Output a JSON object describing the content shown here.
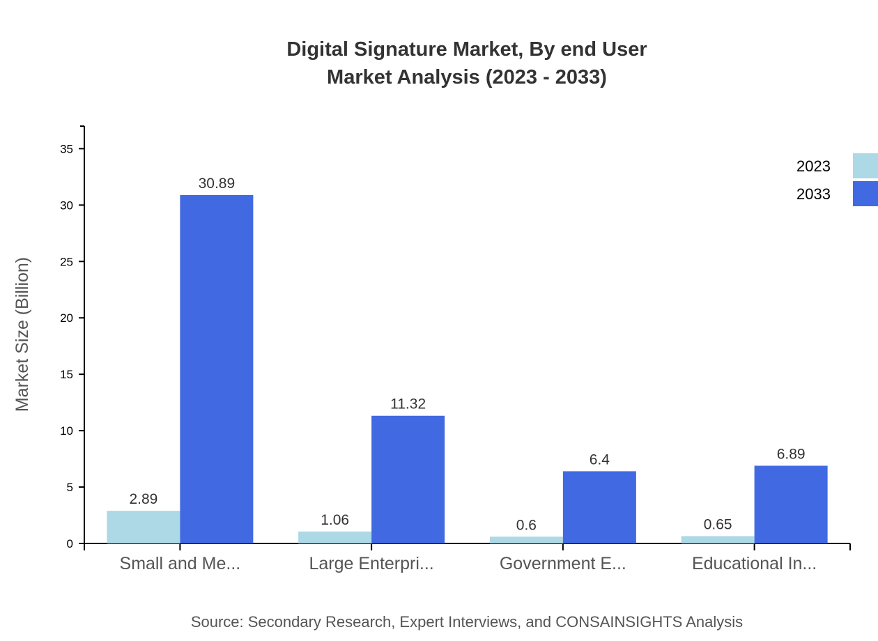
{
  "chart_data": {
    "type": "bar",
    "title": "Digital Signature Market, By end User",
    "subtitle": "Market Analysis (2023 - 2033)",
    "xlabel": "",
    "ylabel": "Market Size (Billion)",
    "ylim": [
      0,
      37
    ],
    "yticks": [
      0,
      5,
      10,
      15,
      20,
      25,
      30,
      35
    ],
    "categories": [
      "Small and Me...",
      "Large Enterpri...",
      "Government E...",
      "Educational In..."
    ],
    "series": [
      {
        "name": "2023",
        "color": "#add8e6",
        "values": [
          2.89,
          1.06,
          0.6,
          0.65
        ]
      },
      {
        "name": "2033",
        "color": "#4169e1",
        "values": [
          30.89,
          11.32,
          6.4,
          6.89
        ]
      }
    ],
    "legend_position": "top-right",
    "grid": false,
    "source": "Source: Secondary Research, Expert Interviews, and CONSAINSIGHTS Analysis"
  }
}
